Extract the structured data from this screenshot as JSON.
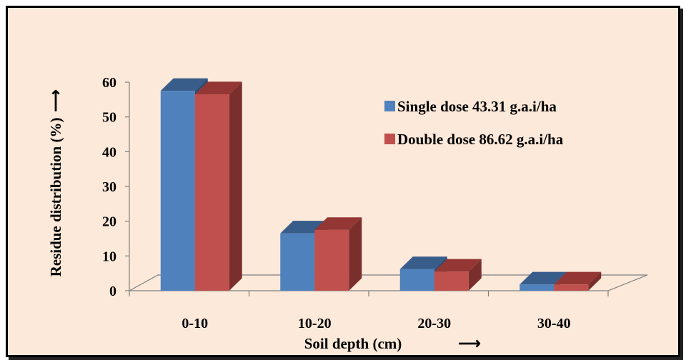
{
  "chart_data": {
    "type": "bar",
    "title": "",
    "xlabel": "Soil depth (cm)",
    "ylabel": "Residue distribution (%)",
    "axis_arrow": "⟶",
    "categories": [
      "0-10",
      "10-20",
      "20-30",
      "30-40"
    ],
    "ylim": [
      0,
      60
    ],
    "yticks": [
      0,
      10,
      20,
      30,
      40,
      50,
      60
    ],
    "legend_position": "top-right",
    "series": [
      {
        "name": "Single dose 43.31 g.a.i/ha",
        "values": [
          57.5,
          16.5,
          6.2,
          1.8
        ],
        "color": "#4f81bd",
        "side_color": "#2c4d75",
        "top_color": "#385d8a"
      },
      {
        "name": "Double dose 86.62 g.a.i/ha",
        "values": [
          56.5,
          17.5,
          5.5,
          1.8
        ],
        "color": "#c0504d",
        "side_color": "#7a2f2d",
        "top_color": "#943634"
      }
    ],
    "colors": {
      "background": "#fde9d9",
      "frame": "#000000"
    }
  }
}
